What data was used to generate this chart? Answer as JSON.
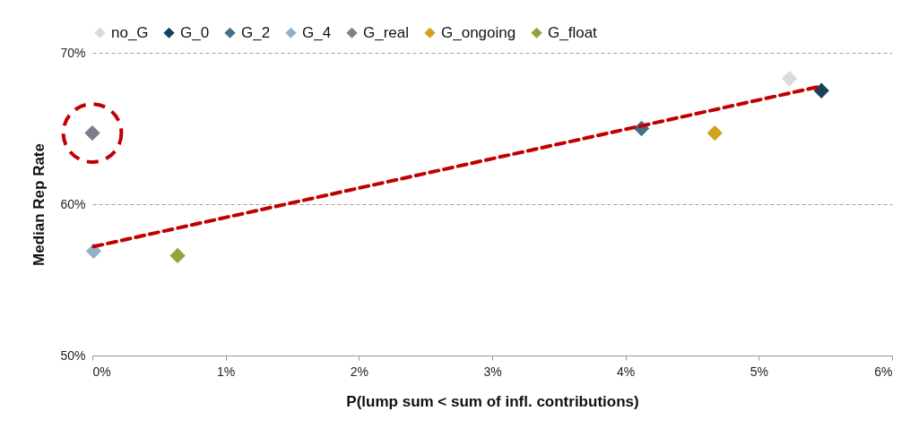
{
  "chart_data": {
    "type": "scatter",
    "xlabel": "P(lump sum < sum of infl. contributions)",
    "ylabel": "Median Rep Rate",
    "xlim": [
      0,
      6
    ],
    "ylim": [
      50,
      70
    ],
    "xticks": [
      {
        "value": 0,
        "label": "0%"
      },
      {
        "value": 1,
        "label": "1%"
      },
      {
        "value": 2,
        "label": "2%"
      },
      {
        "value": 3,
        "label": "3%"
      },
      {
        "value": 4,
        "label": "4%"
      },
      {
        "value": 5,
        "label": "5%"
      },
      {
        "value": 6,
        "label": "6%"
      }
    ],
    "yticks": [
      {
        "value": 50,
        "label": "50%"
      },
      {
        "value": 60,
        "label": "60%"
      },
      {
        "value": 70,
        "label": "70%"
      }
    ],
    "grid": "y",
    "legend": "top",
    "marker": "diamond",
    "series": [
      {
        "name": "no_G",
        "color": "#d9dadc",
        "x": [
          5.23
        ],
        "values": [
          68.3
        ]
      },
      {
        "name": "G_0",
        "color": "#17425e",
        "x": [
          5.47
        ],
        "values": [
          67.5
        ]
      },
      {
        "name": "G_2",
        "color": "#466f87",
        "x": [
          4.12
        ],
        "values": [
          65.0
        ]
      },
      {
        "name": "G_4",
        "color": "#92b1c6",
        "x": [
          0.01
        ],
        "values": [
          56.9
        ]
      },
      {
        "name": "G_real",
        "color": "#7a7f8a",
        "x": [
          0.0
        ],
        "values": [
          64.7
        ]
      },
      {
        "name": "G_ongoing",
        "color": "#d4a020",
        "x": [
          4.67
        ],
        "values": [
          64.7
        ]
      },
      {
        "name": "G_float",
        "color": "#8aa63c",
        "x": [
          0.64
        ],
        "values": [
          56.6
        ]
      },
      {
        "type": "line",
        "color": "#c00000",
        "line_style": "dashed",
        "marker": "none",
        "x": [
          0.01,
          5.47
        ],
        "values": [
          57.2,
          67.8
        ]
      }
    ]
  }
}
